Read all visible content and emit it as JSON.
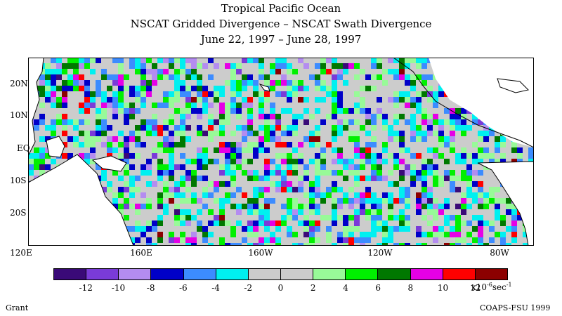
{
  "title": {
    "line1": "Tropical Pacific Ocean",
    "line2": "NSCAT Gridded Divergence – NSCAT Swath Divergence",
    "line3": "June 22, 1997 – June 28, 1997"
  },
  "lat_labels": [
    "20N",
    "10N",
    "EQ",
    "10S",
    "20S"
  ],
  "lon_labels": [
    "120E",
    "160E",
    "160W",
    "120W",
    "80W"
  ],
  "colorbar": {
    "colors": [
      "#3a0a78",
      "#7a3bd8",
      "#b48cf0",
      "#0000c8",
      "#3c8cff",
      "#00f0f0",
      "#cccccc",
      "#cccccc",
      "#98fa98",
      "#00f000",
      "#007800",
      "#e600e6",
      "#ff0000",
      "#8c0000"
    ],
    "tick_labels": [
      "-12",
      "-10",
      "-8",
      "-6",
      "-4",
      "-2",
      "0",
      "2",
      "4",
      "6",
      "8",
      "10",
      "12"
    ],
    "units_base": "x10",
    "units_exp": "-6",
    "units_tail": "sec",
    "units_exp2": "-1"
  },
  "footer": {
    "left": "Grant",
    "right": "COAPS-FSU 1999"
  }
}
